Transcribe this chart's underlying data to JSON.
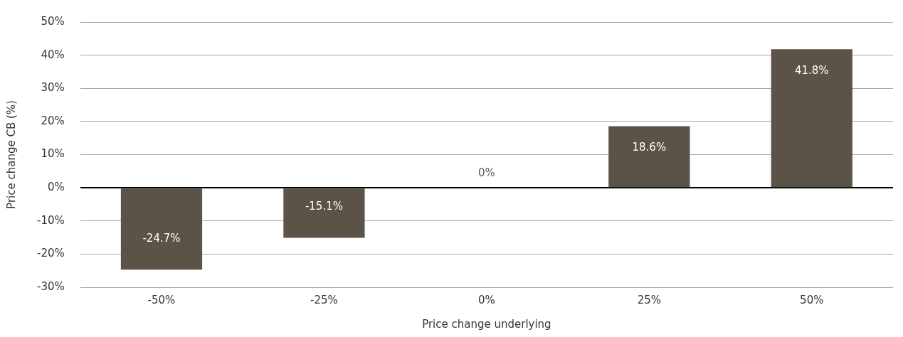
{
  "chart_data": {
    "type": "bar",
    "xlabel": "Price change underlying",
    "ylabel": "Price change CB (%)",
    "categories": [
      "-50%",
      "-25%",
      "0%",
      "25%",
      "50%"
    ],
    "values": [
      -24.7,
      -15.1,
      0,
      18.6,
      41.8
    ],
    "value_labels": [
      "-24.7%",
      "-15.1%",
      "0%",
      "18.6%",
      "41.8%"
    ],
    "color": "#5b5248",
    "ylim": [
      -30,
      50
    ],
    "yticks": [
      {
        "value": -30,
        "label": "-30%"
      },
      {
        "value": -20,
        "label": "-20%"
      },
      {
        "value": -10,
        "label": "-10%"
      },
      {
        "value": 0,
        "label": "0%"
      },
      {
        "value": 10,
        "label": "10%"
      },
      {
        "value": 20,
        "label": "20%"
      },
      {
        "value": 30,
        "label": "30%"
      },
      {
        "value": 40,
        "label": "40%"
      },
      {
        "value": 50,
        "label": "50%"
      }
    ],
    "grid": "y",
    "legend": false
  }
}
